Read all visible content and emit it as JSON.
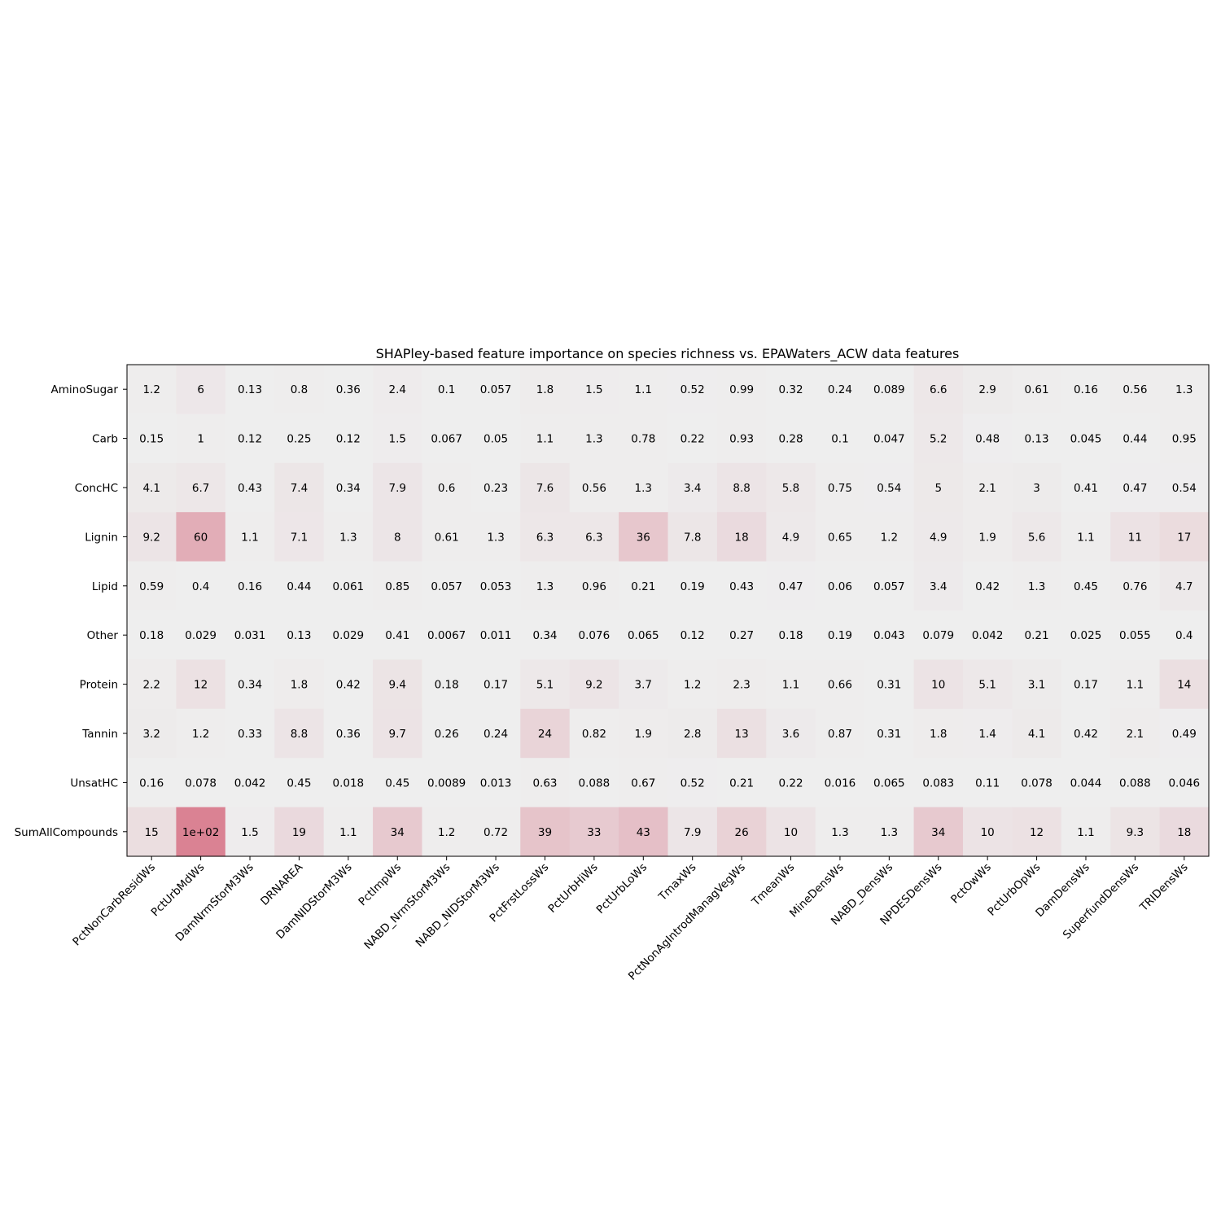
{
  "chart_data": {
    "type": "heatmap",
    "title": "SHAPley-based feature importance on species richness vs. EPAWaters_ACW data features",
    "xlabel": "",
    "ylabel": "",
    "columns": [
      "PctNonCarbResidWs",
      "PctUrbMdWs",
      "DamNrmStorM3Ws",
      "DRNAREA",
      "DamNIDStorM3Ws",
      "PctImpWs",
      "NABD_NrmStorM3Ws",
      "NABD_NIDStorM3Ws",
      "PctFrstLossWs",
      "PctUrbHiWs",
      "PctUrbLoWs",
      "TmaxWs",
      "PctNonAgIntrodManagVegWs",
      "TmeanWs",
      "MineDensWs",
      "NABD_DensWs",
      "NPDESDensWs",
      "PctOwWs",
      "PctUrbOpWs",
      "DamDensWs",
      "SuperfundDensWs",
      "TRIDensWs"
    ],
    "rows": [
      "AminoSugar",
      "Carb",
      "ConcHC",
      "Lignin",
      "Lipid",
      "Other",
      "Protein",
      "Tannin",
      "UnsatHC",
      "SumAllCompounds"
    ],
    "values": [
      [
        1.2,
        6,
        0.13,
        0.8,
        0.36,
        2.4,
        0.1,
        0.057,
        1.8,
        1.5,
        1.1,
        0.52,
        0.99,
        0.32,
        0.24,
        0.089,
        6.6,
        2.9,
        0.61,
        0.16,
        0.56,
        1.3
      ],
      [
        0.15,
        1,
        0.12,
        0.25,
        0.12,
        1.5,
        0.067,
        0.05,
        1.1,
        1.3,
        0.78,
        0.22,
        0.93,
        0.28,
        0.1,
        0.047,
        5.2,
        0.48,
        0.13,
        0.045,
        0.44,
        0.95
      ],
      [
        4.1,
        6.7,
        0.43,
        7.4,
        0.34,
        7.9,
        0.6,
        0.23,
        7.6,
        0.56,
        1.3,
        3.4,
        8.8,
        5.8,
        0.75,
        0.54,
        5,
        2.1,
        3,
        0.41,
        0.47,
        0.54
      ],
      [
        9.2,
        60,
        1.1,
        7.1,
        1.3,
        8,
        0.61,
        1.3,
        6.3,
        6.3,
        36,
        7.8,
        18,
        4.9,
        0.65,
        1.2,
        4.9,
        1.9,
        5.6,
        1.1,
        11,
        17
      ],
      [
        0.59,
        0.4,
        0.16,
        0.44,
        0.061,
        0.85,
        0.057,
        0.053,
        1.3,
        0.96,
        0.21,
        0.19,
        0.43,
        0.47,
        0.06,
        0.057,
        3.4,
        0.42,
        1.3,
        0.45,
        0.76,
        4.7
      ],
      [
        0.18,
        0.029,
        0.031,
        0.13,
        0.029,
        0.41,
        0.0067,
        0.011,
        0.34,
        0.076,
        0.065,
        0.12,
        0.27,
        0.18,
        0.19,
        0.043,
        0.079,
        0.042,
        0.21,
        0.025,
        0.055,
        0.4
      ],
      [
        2.2,
        12,
        0.34,
        1.8,
        0.42,
        9.4,
        0.18,
        0.17,
        5.1,
        9.2,
        3.7,
        1.2,
        2.3,
        1.1,
        0.66,
        0.31,
        10,
        5.1,
        3.1,
        0.17,
        1.1,
        14
      ],
      [
        3.2,
        1.2,
        0.33,
        8.8,
        0.36,
        9.7,
        0.26,
        0.24,
        24,
        0.82,
        1.9,
        2.8,
        13,
        3.6,
        0.87,
        0.31,
        1.8,
        1.4,
        4.1,
        0.42,
        2.1,
        0.49
      ],
      [
        0.16,
        0.078,
        0.042,
        0.45,
        0.018,
        0.45,
        0.0089,
        0.013,
        0.63,
        0.088,
        0.67,
        0.52,
        0.21,
        0.22,
        0.016,
        0.065,
        0.083,
        0.11,
        0.078,
        0.044,
        0.088,
        0.046
      ],
      [
        15,
        100,
        1.5,
        19,
        1.1,
        34,
        1.2,
        0.72,
        39,
        33,
        43,
        7.9,
        26,
        10,
        1.3,
        1.3,
        34,
        10,
        12,
        1.1,
        9.3,
        18
      ]
    ],
    "labels": [
      [
        "1.2",
        "6",
        "0.13",
        "0.8",
        "0.36",
        "2.4",
        "0.1",
        "0.057",
        "1.8",
        "1.5",
        "1.1",
        "0.52",
        "0.99",
        "0.32",
        "0.24",
        "0.089",
        "6.6",
        "2.9",
        "0.61",
        "0.16",
        "0.56",
        "1.3"
      ],
      [
        "0.15",
        "1",
        "0.12",
        "0.25",
        "0.12",
        "1.5",
        "0.067",
        "0.05",
        "1.1",
        "1.3",
        "0.78",
        "0.22",
        "0.93",
        "0.28",
        "0.1",
        "0.047",
        "5.2",
        "0.48",
        "0.13",
        "0.045",
        "0.44",
        "0.95"
      ],
      [
        "4.1",
        "6.7",
        "0.43",
        "7.4",
        "0.34",
        "7.9",
        "0.6",
        "0.23",
        "7.6",
        "0.56",
        "1.3",
        "3.4",
        "8.8",
        "5.8",
        "0.75",
        "0.54",
        "5",
        "2.1",
        "3",
        "0.41",
        "0.47",
        "0.54"
      ],
      [
        "9.2",
        "60",
        "1.1",
        "7.1",
        "1.3",
        "8",
        "0.61",
        "1.3",
        "6.3",
        "6.3",
        "36",
        "7.8",
        "18",
        "4.9",
        "0.65",
        "1.2",
        "4.9",
        "1.9",
        "5.6",
        "1.1",
        "11",
        "17"
      ],
      [
        "0.59",
        "0.4",
        "0.16",
        "0.44",
        "0.061",
        "0.85",
        "0.057",
        "0.053",
        "1.3",
        "0.96",
        "0.21",
        "0.19",
        "0.43",
        "0.47",
        "0.06",
        "0.057",
        "3.4",
        "0.42",
        "1.3",
        "0.45",
        "0.76",
        "4.7"
      ],
      [
        "0.18",
        "0.029",
        "0.031",
        "0.13",
        "0.029",
        "0.41",
        "0.0067",
        "0.011",
        "0.34",
        "0.076",
        "0.065",
        "0.12",
        "0.27",
        "0.18",
        "0.19",
        "0.043",
        "0.079",
        "0.042",
        "0.21",
        "0.025",
        "0.055",
        "0.4"
      ],
      [
        "2.2",
        "12",
        "0.34",
        "1.8",
        "0.42",
        "9.4",
        "0.18",
        "0.17",
        "5.1",
        "9.2",
        "3.7",
        "1.2",
        "2.3",
        "1.1",
        "0.66",
        "0.31",
        "10",
        "5.1",
        "3.1",
        "0.17",
        "1.1",
        "14"
      ],
      [
        "3.2",
        "1.2",
        "0.33",
        "8.8",
        "0.36",
        "9.7",
        "0.26",
        "0.24",
        "24",
        "0.82",
        "1.9",
        "2.8",
        "13",
        "3.6",
        "0.87",
        "0.31",
        "1.8",
        "1.4",
        "4.1",
        "0.42",
        "2.1",
        "0.49"
      ],
      [
        "0.16",
        "0.078",
        "0.042",
        "0.45",
        "0.018",
        "0.45",
        "0.0089",
        "0.013",
        "0.63",
        "0.088",
        "0.67",
        "0.52",
        "0.21",
        "0.22",
        "0.016",
        "0.065",
        "0.083",
        "0.11",
        "0.078",
        "0.044",
        "0.088",
        "0.046"
      ],
      [
        "15",
        "1e+02",
        "1.5",
        "19",
        "1.1",
        "34",
        "1.2",
        "0.72",
        "39",
        "33",
        "43",
        "7.9",
        "26",
        "10",
        "1.3",
        "1.3",
        "34",
        "10",
        "12",
        "1.1",
        "9.3",
        "18"
      ]
    ],
    "colormap": "coolwarm",
    "color_range": [
      -100,
      100
    ],
    "colors": {
      "low": "#3b4cc0",
      "mid": "#dddddd",
      "high": "#b40426",
      "cell_alpha": 0.5
    },
    "grid": false,
    "legend": "none"
  }
}
